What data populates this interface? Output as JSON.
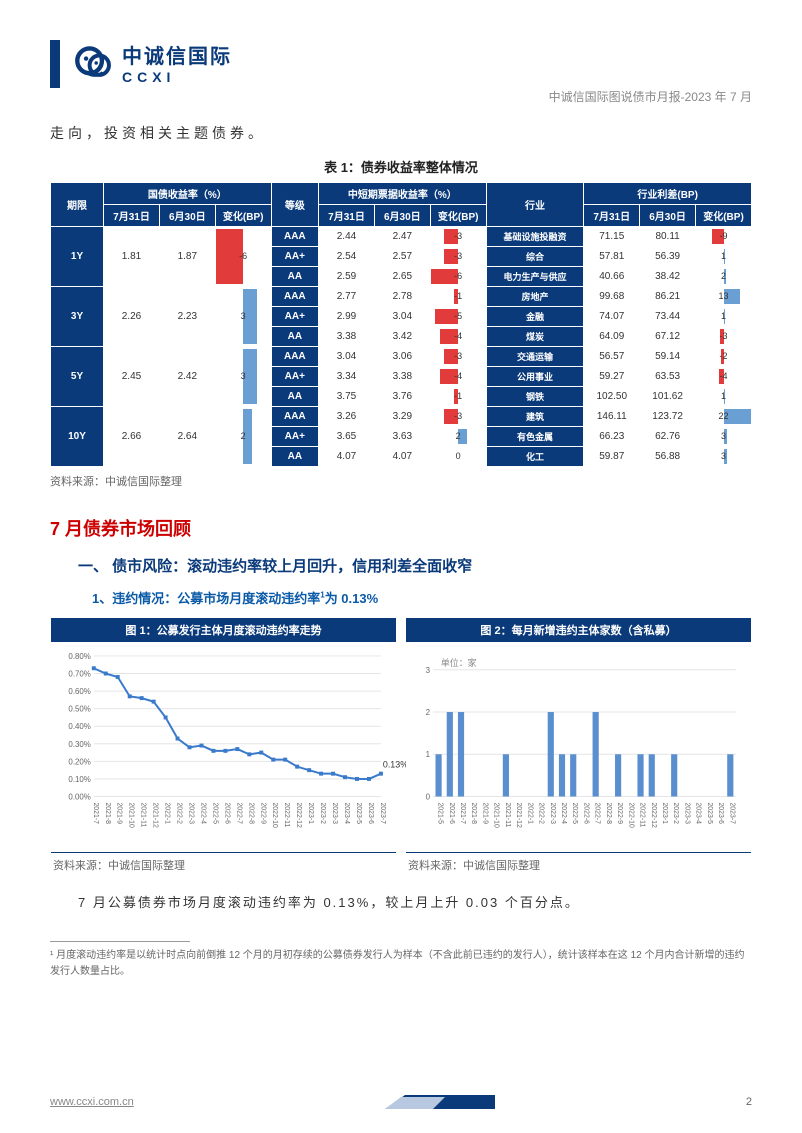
{
  "header": {
    "logo_cn": "中诚信国际",
    "logo_en": "CCXI",
    "subtitle": "中诚信国际图说债市月报-2023 年 7 月"
  },
  "intro": "走向，投资相关主题债券。",
  "table1": {
    "title": "表 1：债券收益率整体情况",
    "group_headers": [
      "国债收益率（%）",
      "中短期票据收益率（%）",
      "行业利差(BP)"
    ],
    "col_term": "期限",
    "cols_g1": [
      "7月31日",
      "6月30日",
      "变化(BP)"
    ],
    "col_grade": "等级",
    "cols_g2": [
      "7月31日",
      "6月30日",
      "变化(BP)"
    ],
    "col_ind": "行业",
    "cols_g3": [
      "7月31日",
      "6月30日",
      "变化(BP)"
    ],
    "terms": [
      {
        "label": "1Y",
        "g1": [
          "1.81",
          "1.87",
          "-6"
        ],
        "chg1": -6,
        "rows": [
          {
            "grade": "AAA",
            "v": [
              "2.44",
              "2.47",
              "-3"
            ],
            "chg": -3,
            "ind": "基础设施投融资",
            "iv": [
              "71.15",
              "80.11",
              "-9"
            ],
            "ichg": -9
          },
          {
            "grade": "AA+",
            "v": [
              "2.54",
              "2.57",
              "-3"
            ],
            "chg": -3,
            "ind": "综合",
            "iv": [
              "57.81",
              "56.39",
              "1"
            ],
            "ichg": 1
          },
          {
            "grade": "AA",
            "v": [
              "2.59",
              "2.65",
              "-6"
            ],
            "chg": -6,
            "ind": "电力生产与供应",
            "iv": [
              "40.66",
              "38.42",
              "2"
            ],
            "ichg": 2
          }
        ]
      },
      {
        "label": "3Y",
        "g1": [
          "2.26",
          "2.23",
          "3"
        ],
        "chg1": 3,
        "rows": [
          {
            "grade": "AAA",
            "v": [
              "2.77",
              "2.78",
              "-1"
            ],
            "chg": -1,
            "ind": "房地产",
            "iv": [
              "99.68",
              "86.21",
              "13"
            ],
            "ichg": 13
          },
          {
            "grade": "AA+",
            "v": [
              "2.99",
              "3.04",
              "-5"
            ],
            "chg": -5,
            "ind": "金融",
            "iv": [
              "74.07",
              "73.44",
              "1"
            ],
            "ichg": 1
          },
          {
            "grade": "AA",
            "v": [
              "3.38",
              "3.42",
              "-4"
            ],
            "chg": -4,
            "ind": "煤炭",
            "iv": [
              "64.09",
              "67.12",
              "-3"
            ],
            "ichg": -3
          }
        ]
      },
      {
        "label": "5Y",
        "g1": [
          "2.45",
          "2.42",
          "3"
        ],
        "chg1": 3,
        "rows": [
          {
            "grade": "AAA",
            "v": [
              "3.04",
              "3.06",
              "-3"
            ],
            "chg": -3,
            "ind": "交通运输",
            "iv": [
              "56.57",
              "59.14",
              "-2"
            ],
            "ichg": -2
          },
          {
            "grade": "AA+",
            "v": [
              "3.34",
              "3.38",
              "-4"
            ],
            "chg": -4,
            "ind": "公用事业",
            "iv": [
              "59.27",
              "63.53",
              "-4"
            ],
            "ichg": -4
          },
          {
            "grade": "AA",
            "v": [
              "3.75",
              "3.76",
              "-1"
            ],
            "chg": -1,
            "ind": "钢铁",
            "iv": [
              "102.50",
              "101.62",
              "1"
            ],
            "ichg": 1
          }
        ]
      },
      {
        "label": "10Y",
        "g1": [
          "2.66",
          "2.64",
          "2"
        ],
        "chg1": 2,
        "rows": [
          {
            "grade": "AAA",
            "v": [
              "3.26",
              "3.29",
              "-3"
            ],
            "chg": -3,
            "ind": "建筑",
            "iv": [
              "146.11",
              "123.72",
              "22"
            ],
            "ichg": 22
          },
          {
            "grade": "AA+",
            "v": [
              "3.65",
              "3.63",
              "2"
            ],
            "chg": 2,
            "ind": "有色金属",
            "iv": [
              "66.23",
              "62.76",
              "3"
            ],
            "ichg": 3
          },
          {
            "grade": "AA",
            "v": [
              "4.07",
              "4.07",
              "0"
            ],
            "chg": 0,
            "ind": "化工",
            "iv": [
              "59.87",
              "56.88",
              "3"
            ],
            "ichg": 3
          }
        ]
      }
    ],
    "source": "资料来源：中诚信国际整理",
    "neg_color": "#e23b3b",
    "pos_color": "#6a9fd4",
    "max_bar": 22
  },
  "h1": "7 月债券市场回顾",
  "h2": "一、 债市风险：滚动违约率较上月回升，信用利差全面收窄",
  "h3": "1、违约情况：公募市场月度滚动违约率¹为 0.13%",
  "chart1": {
    "title": "图 1：公募发行主体月度滚动违约率走势",
    "type": "line",
    "y_ticks": [
      "0.80%",
      "0.70%",
      "0.60%",
      "0.50%",
      "0.40%",
      "0.30%",
      "0.20%",
      "0.10%",
      "0.00%"
    ],
    "y_max": 0.8,
    "x_labels": [
      "2021-7",
      "2021-8",
      "2021-9",
      "2021-10",
      "2021-11",
      "2021-12",
      "2022-1",
      "2022-2",
      "2022-3",
      "2022-4",
      "2022-5",
      "2022-6",
      "2022-7",
      "2022-8",
      "2022-9",
      "2022-10",
      "2022-11",
      "2022-12",
      "2023-1",
      "2023-2",
      "2023-3",
      "2023-4",
      "2023-5",
      "2023-6",
      "2023-7"
    ],
    "values": [
      0.73,
      0.7,
      0.68,
      0.57,
      0.56,
      0.54,
      0.45,
      0.33,
      0.28,
      0.29,
      0.26,
      0.26,
      0.27,
      0.24,
      0.25,
      0.21,
      0.21,
      0.17,
      0.15,
      0.13,
      0.13,
      0.11,
      0.1,
      0.1,
      0.13
    ],
    "annotation": "0.13%",
    "line_color": "#3a7acb",
    "grid_color": "#e5e5e5",
    "bg": "#ffffff",
    "source": "资料来源：中诚信国际整理"
  },
  "chart2": {
    "title": "图 2：每月新增违约主体家数（含私募）",
    "type": "bar",
    "unit": "单位：家",
    "y_ticks": [
      "3",
      "2",
      "1",
      "0"
    ],
    "y_max": 3,
    "x_labels": [
      "2021-5",
      "2021-6",
      "2021-7",
      "2021-8",
      "2021-9",
      "2021-10",
      "2021-11",
      "2021-12",
      "2022-1",
      "2022-2",
      "2022-3",
      "2022-4",
      "2022-5",
      "2022-6",
      "2022-7",
      "2022-8",
      "2022-9",
      "2022-10",
      "2022-11",
      "2022-12",
      "2023-1",
      "2023-2",
      "2023-3",
      "2023-4",
      "2023-5",
      "2023-6",
      "2023-7"
    ],
    "values": [
      1,
      2,
      2,
      0,
      0,
      0,
      1,
      0,
      0,
      0,
      2,
      1,
      1,
      0,
      2,
      0,
      1,
      0,
      1,
      1,
      0,
      1,
      0,
      0,
      0,
      0,
      1
    ],
    "bar_color": "#5a8fcf",
    "grid_color": "#e5e5e5",
    "bg": "#ffffff",
    "source": "资料来源：中诚信国际整理"
  },
  "body": "7 月公募债券市场月度滚动违约率为 0.13%，较上月上升 0.03 个百分点。",
  "footnote": "¹ 月度滚动违约率是以统计时点向前倒推 12 个月的月初存续的公募债券发行人为样本（不含此前已违约的发行人），统计该样本在这 12 个月内合计新增的违约发行人数量占比。",
  "footer": {
    "url": "www.ccxi.com.cn",
    "page": "2"
  },
  "colors": {
    "navy": "#0a3a7a",
    "red_h": "#cc0000",
    "blue_h": "#0a5aa8"
  }
}
